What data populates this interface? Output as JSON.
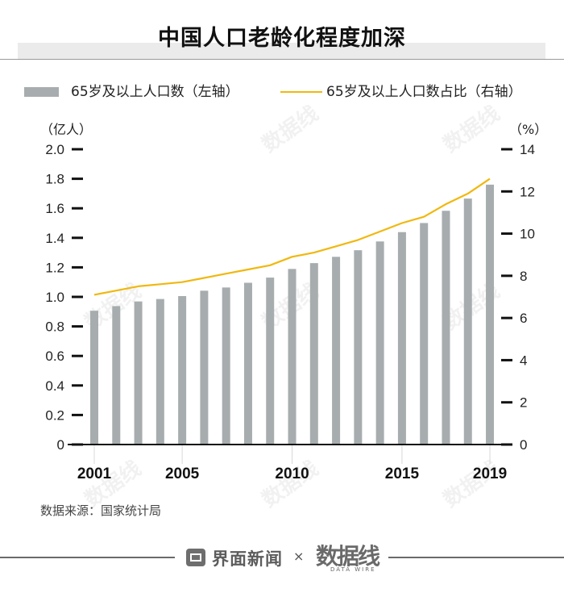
{
  "header": {
    "title": "中国人口老龄化程度加深"
  },
  "legend": {
    "bar_label": "65岁及以上人口数（左轴）",
    "line_label": "65岁及以上人口数占比（右轴）"
  },
  "axes": {
    "left_unit": "（亿人）",
    "right_unit": "（%）"
  },
  "source": "数据来源：国家统计局",
  "footer": {
    "brand_name": "界面新闻",
    "times": "×",
    "partner_cn": "数据线",
    "partner_en": "DATA WIRE"
  },
  "watermark_text": "数据线",
  "colors": {
    "bar": "#a7adae",
    "line": "#f0b80f",
    "axis": "#111111"
  },
  "chart_data": {
    "type": "bar+line",
    "title": "中国人口老龄化程度加深",
    "xlabel": "",
    "x": [
      2001,
      2002,
      2003,
      2004,
      2005,
      2006,
      2007,
      2008,
      2009,
      2010,
      2011,
      2012,
      2013,
      2014,
      2015,
      2016,
      2017,
      2018,
      2019
    ],
    "x_tick_labels": [
      "2001",
      "2005",
      "2010",
      "2015",
      "2019"
    ],
    "x_tick_years": [
      2001,
      2005,
      2010,
      2015,
      2019
    ],
    "series": [
      {
        "name": "65岁及以上人口数（左轴）",
        "type": "bar",
        "axis": "left",
        "unit": "亿人",
        "values": [
          0.9062,
          0.9377,
          0.9692,
          0.9857,
          1.0055,
          1.0419,
          1.0636,
          1.0956,
          1.1307,
          1.1894,
          1.2288,
          1.2714,
          1.3161,
          1.3755,
          1.4386,
          1.5003,
          1.5831,
          1.6658,
          1.7603
        ]
      },
      {
        "name": "65岁及以上人口数占比（右轴）",
        "type": "line",
        "axis": "right",
        "unit": "%",
        "values": [
          7.1,
          7.3,
          7.5,
          7.6,
          7.7,
          7.9,
          8.1,
          8.3,
          8.5,
          8.9,
          9.1,
          9.4,
          9.7,
          10.1,
          10.5,
          10.8,
          11.4,
          11.9,
          12.6
        ]
      }
    ],
    "left_axis": {
      "label": "（亿人）",
      "ylim": [
        0,
        2.0
      ],
      "ticks": [
        0,
        0.2,
        0.4,
        0.6,
        0.8,
        1.0,
        1.2,
        1.4,
        1.6,
        1.8,
        2.0
      ],
      "tick_labels": [
        "0",
        "0.2",
        "0.4",
        "0.6",
        "0.8",
        "1.0",
        "1.2",
        "1.4",
        "1.6",
        "1.8",
        "2.0"
      ]
    },
    "right_axis": {
      "label": "（%）",
      "ylim": [
        0,
        14
      ],
      "ticks": [
        0,
        2,
        4,
        6,
        8,
        10,
        12,
        14
      ],
      "tick_labels": [
        "0",
        "2",
        "4",
        "6",
        "8",
        "10",
        "12",
        "14"
      ]
    },
    "grid": false,
    "legend_position": "top"
  }
}
